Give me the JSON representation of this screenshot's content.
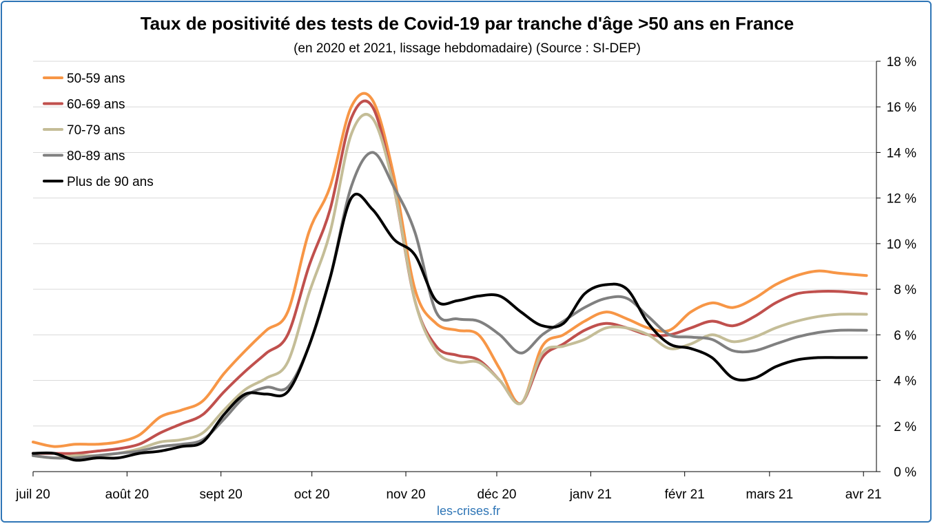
{
  "chart_data": {
    "type": "line",
    "title": "Taux de positivité des tests de Covid-19 par tranche d'âge >50 ans en France",
    "subtitle": "(en 2020 et 2021, lissage hebdomadaire) (Source : SI-DEP)",
    "source_note": "les-crises.fr",
    "x_tick_labels": [
      "juil 20",
      "août 20",
      "sept 20",
      "oct 20",
      "nov 20",
      "déc 20",
      "janv 21",
      "févr 21",
      "mars 21",
      "avr 21"
    ],
    "x_month_offsets": [
      0,
      31,
      62,
      92,
      123,
      153,
      184,
      215,
      243,
      274
    ],
    "x": [
      0,
      7,
      14,
      21,
      28,
      35,
      42,
      49,
      56,
      63,
      70,
      77,
      84,
      91,
      98,
      105,
      112,
      119,
      126,
      133,
      140,
      147,
      154,
      161,
      168,
      175,
      182,
      189,
      196,
      203,
      210,
      217,
      224,
      231,
      238,
      245,
      252,
      259,
      266,
      275
    ],
    "y_tick_labels": [
      "0 %",
      "2 %",
      "4 %",
      "6 %",
      "8 %",
      "10 %",
      "12 %",
      "14 %",
      "16 %",
      "18 %"
    ],
    "ylim": [
      0,
      18
    ],
    "y_axis_position": "right",
    "legend_position": "top-left",
    "grid": true,
    "series": [
      {
        "name": "50-59 ans",
        "color": "#f79646",
        "values": [
          1.3,
          1.1,
          1.2,
          1.2,
          1.3,
          1.6,
          2.4,
          2.7,
          3.1,
          4.3,
          5.3,
          6.2,
          7.0,
          10.5,
          12.5,
          16.0,
          16.3,
          13.0,
          8.0,
          6.5,
          6.2,
          6.0,
          4.5,
          3.0,
          5.5,
          6.0,
          6.6,
          7.0,
          6.7,
          6.3,
          6.2,
          7.0,
          7.4,
          7.2,
          7.6,
          8.2,
          8.6,
          8.8,
          8.7,
          8.6
        ]
      },
      {
        "name": "60-69 ans",
        "color": "#c0504d",
        "values": [
          0.8,
          0.8,
          0.8,
          0.9,
          1.0,
          1.2,
          1.7,
          2.1,
          2.5,
          3.5,
          4.4,
          5.2,
          6.0,
          9.0,
          11.5,
          15.5,
          16.0,
          12.5,
          7.5,
          5.5,
          5.1,
          4.9,
          4.0,
          3.0,
          5.0,
          5.6,
          6.2,
          6.5,
          6.3,
          6.0,
          6.0,
          6.3,
          6.6,
          6.4,
          6.8,
          7.4,
          7.8,
          7.9,
          7.9,
          7.8
        ]
      },
      {
        "name": "70-79 ans",
        "color": "#c4bd97",
        "values": [
          0.7,
          0.6,
          0.7,
          0.7,
          0.8,
          1.0,
          1.3,
          1.4,
          1.7,
          2.7,
          3.6,
          4.1,
          4.8,
          7.8,
          10.5,
          14.8,
          15.5,
          12.5,
          7.5,
          5.3,
          4.8,
          4.8,
          4.0,
          3.0,
          5.2,
          5.5,
          5.8,
          6.3,
          6.3,
          6.0,
          5.4,
          5.6,
          6.0,
          5.7,
          5.9,
          6.3,
          6.6,
          6.8,
          6.9,
          6.9
        ]
      },
      {
        "name": "80-89 ans",
        "color": "#808080",
        "values": [
          0.7,
          0.6,
          0.6,
          0.7,
          0.8,
          0.9,
          1.1,
          1.2,
          1.4,
          2.3,
          3.3,
          3.7,
          3.7,
          5.5,
          8.5,
          12.5,
          14.0,
          12.5,
          10.5,
          7.0,
          6.7,
          6.6,
          6.0,
          5.2,
          6.0,
          6.6,
          7.2,
          7.6,
          7.6,
          6.8,
          6.0,
          5.9,
          5.8,
          5.3,
          5.3,
          5.6,
          5.9,
          6.1,
          6.2,
          6.2
        ]
      },
      {
        "name": "Plus de 90 ans",
        "color": "#000000",
        "values": [
          0.8,
          0.8,
          0.5,
          0.6,
          0.6,
          0.8,
          0.9,
          1.1,
          1.3,
          2.5,
          3.4,
          3.4,
          3.5,
          5.5,
          8.5,
          12.0,
          11.5,
          10.2,
          9.5,
          7.5,
          7.5,
          7.7,
          7.7,
          7.0,
          6.4,
          6.5,
          7.8,
          8.2,
          8.0,
          6.5,
          5.6,
          5.4,
          5.0,
          4.1,
          4.1,
          4.6,
          4.9,
          5.0,
          5.0,
          5.0
        ]
      }
    ]
  }
}
